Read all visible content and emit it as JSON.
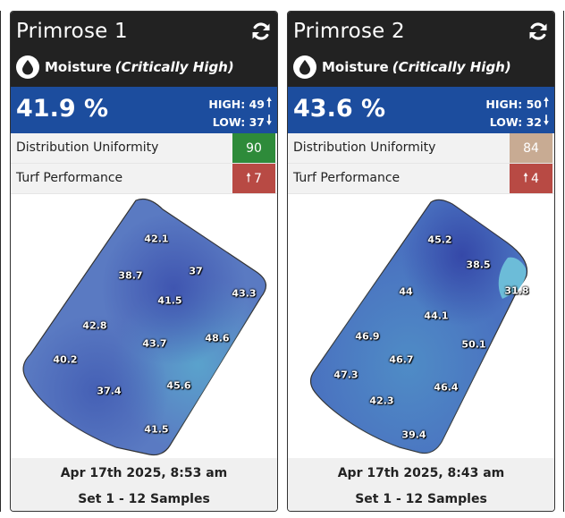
{
  "colors": {
    "header_bg": "#222222",
    "value_band": "#1c4d9e",
    "uniformity_good": "#2e8b3a",
    "uniformity_neutral": "#c8ab93",
    "performance_bad": "#b84a44"
  },
  "cards": [
    {
      "title": "Primrose 1",
      "refresh_icon": "refresh-icon",
      "metric_icon": "water-drop-icon",
      "metric_name": "Moisture",
      "metric_status": "(Critically High)",
      "value": "41.9 %",
      "high_label": "HIGH: 49",
      "low_label": "LOW: 37",
      "distribution_label": "Distribution Uniformity",
      "distribution_value": "90",
      "turf_label": "Turf Performance",
      "turf_value": "7",
      "samples": [
        "42.1",
        "38.7",
        "37",
        "43.3",
        "41.5",
        "42.8",
        "43.7",
        "48.6",
        "40.2",
        "45.6",
        "37.4",
        "41.5"
      ],
      "date": "Apr 17th 2025, 8:53 am",
      "set_label": "Set 1 - 12 Samples"
    },
    {
      "title": "Primrose 2",
      "refresh_icon": "refresh-icon",
      "metric_icon": "water-drop-icon",
      "metric_name": "Moisture",
      "metric_status": "(Critically High)",
      "value": "43.6 %",
      "high_label": "HIGH: 50",
      "low_label": "LOW: 32",
      "distribution_label": "Distribution Uniformity",
      "distribution_value": "84",
      "turf_label": "Turf Performance",
      "turf_value": "4",
      "samples": [
        "45.2",
        "38.5",
        "31.8",
        "44",
        "44.1",
        "46.9",
        "50.1",
        "46.7",
        "47.3",
        "46.4",
        "42.3",
        "39.4"
      ],
      "date": "Apr 17th 2025, 8:43 am",
      "set_label": "Set 1 - 12 Samples"
    }
  ]
}
